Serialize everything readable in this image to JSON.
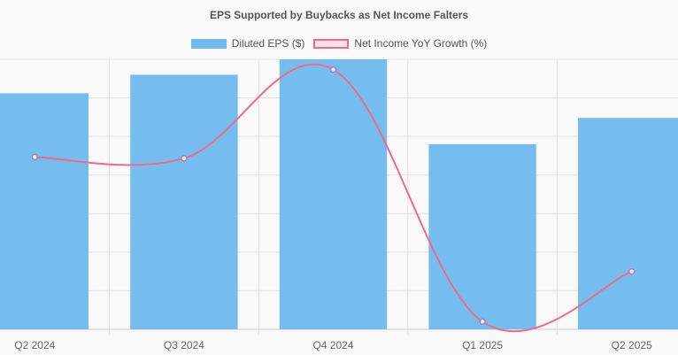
{
  "chart_data": {
    "type": "bar",
    "title": "EPS Supported by Buybacks as Net Income Falters",
    "categories": [
      "Q2 2024",
      "Q3 2024",
      "Q4 2024",
      "Q1 2025",
      "Q2 2025"
    ],
    "series": [
      {
        "name": "Diluted EPS ($)",
        "type": "bar",
        "axis": "left",
        "values": [
          1.53,
          1.65,
          1.77,
          1.2,
          1.37
        ],
        "color": "#6eb9ee"
      },
      {
        "name": "Net Income YoY Growth (%)",
        "type": "line",
        "axis": "right",
        "values": [
          -1.5,
          -1.6,
          5.3,
          -14.3,
          -10.4
        ],
        "color": "#ee6a8a",
        "fill": "#fde3e9"
      }
    ],
    "ylim_left": [
      0,
      1.75
    ],
    "ylim_right": [
      -14.9,
      6.1
    ],
    "grid": true,
    "legend_position": "top"
  }
}
